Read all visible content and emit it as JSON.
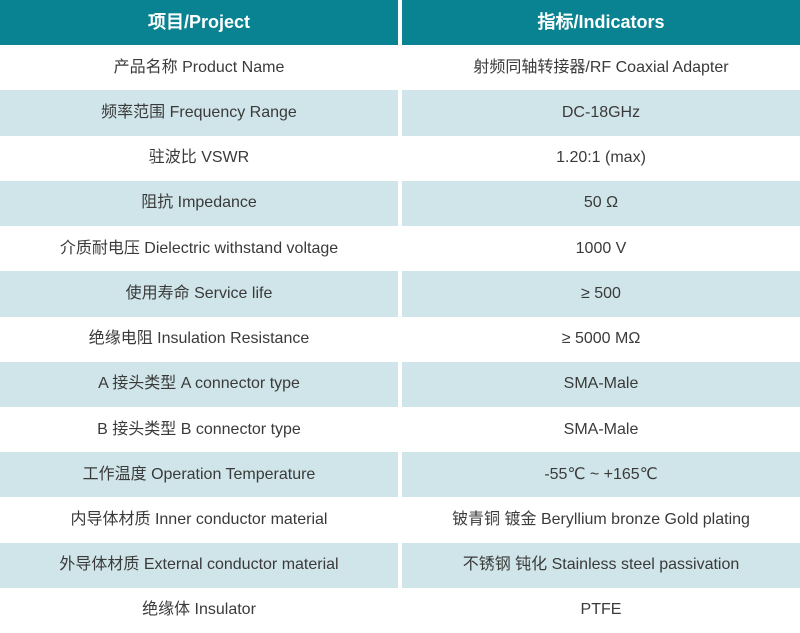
{
  "colors": {
    "header_bg": "#098392",
    "header_text": "#ffffff",
    "row_alt_bg": "#d0e5e9",
    "row_bg": "#ffffff",
    "body_text": "#3a3a3a",
    "column_divider": "#ffffff"
  },
  "table": {
    "headers": {
      "project": "项目/Project",
      "indicator": "指标/Indicators"
    },
    "rows": [
      {
        "project": "产品名称 Product Name",
        "indicator": "射频同轴转接器/RF Coaxial Adapter"
      },
      {
        "project": "频率范围 Frequency Range",
        "indicator": "DC-18GHz"
      },
      {
        "project": "驻波比 VSWR",
        "indicator": "1.20:1 (max)"
      },
      {
        "project": "阻抗 Impedance",
        "indicator": "50 Ω"
      },
      {
        "project": "介质耐电压 Dielectric withstand voltage",
        "indicator": "1000 V"
      },
      {
        "project": "使用寿命 Service life",
        "indicator": "≥ 500"
      },
      {
        "project": "绝缘电阻 Insulation Resistance",
        "indicator": "≥ 5000 MΩ"
      },
      {
        "project": "A 接头类型 A connector type",
        "indicator": "SMA-Male"
      },
      {
        "project": "B 接头类型 B connector type",
        "indicator": "SMA-Male"
      },
      {
        "project": "工作温度 Operation Temperature",
        "indicator": "-55℃ ~ +165℃"
      },
      {
        "project": "内导体材质 Inner conductor material",
        "indicator": "铍青铜 镀金 Beryllium bronze Gold plating"
      },
      {
        "project": "外导体材质 External conductor material",
        "indicator": "不锈钢 钝化 Stainless steel passivation"
      },
      {
        "project": "绝缘体 Insulator",
        "indicator": "PTFE"
      }
    ]
  }
}
